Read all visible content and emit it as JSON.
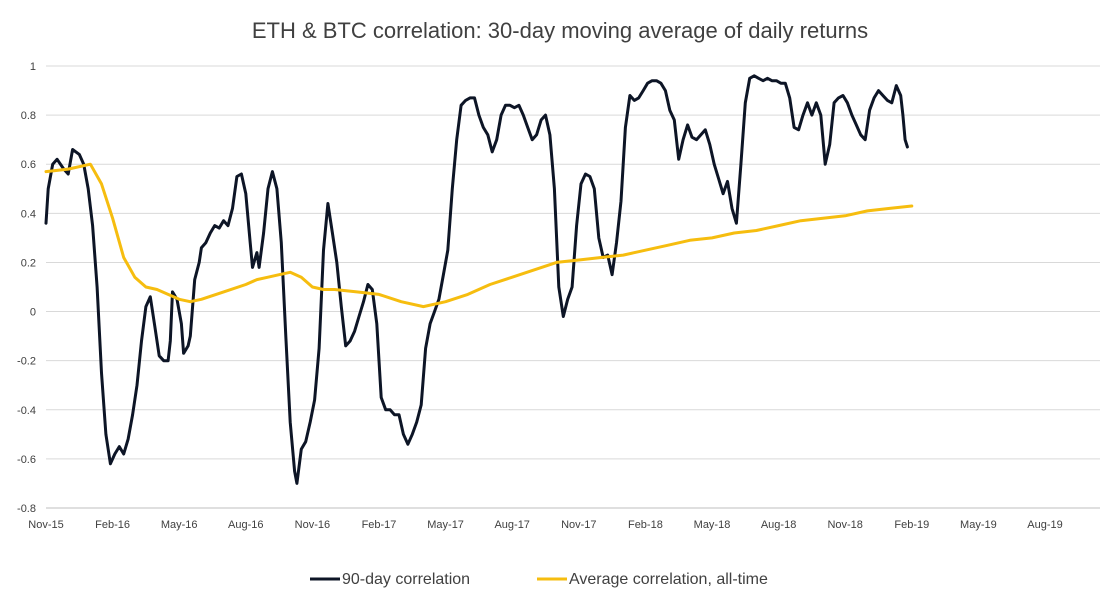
{
  "chart_data": {
    "type": "line",
    "title": "ETH & BTC correlation: 30-day moving average of daily returns",
    "xlabel": "",
    "ylabel": "",
    "ylim": [
      -0.8,
      1
    ],
    "y_ticks": [
      "1",
      "0.8",
      "0.6",
      "0.4",
      "0.2",
      "0",
      "-0.2",
      "-0.4",
      "-0.6",
      "-0.8"
    ],
    "x_ticks": [
      "Nov-15",
      "Feb-16",
      "May-16",
      "Aug-16",
      "Nov-16",
      "Feb-17",
      "May-17",
      "Aug-17",
      "Nov-17",
      "Feb-18",
      "May-18",
      "Aug-18",
      "Nov-18",
      "Feb-19",
      "May-19",
      "Aug-19"
    ],
    "x_range_months": [
      0,
      48
    ],
    "grid": true,
    "legend_position": "bottom",
    "series": [
      {
        "name": "90-day correlation",
        "color": "#0d1526",
        "points": [
          [
            0.0,
            0.36
          ],
          [
            0.1,
            0.5
          ],
          [
            0.3,
            0.6
          ],
          [
            0.5,
            0.62
          ],
          [
            0.8,
            0.58
          ],
          [
            1.0,
            0.56
          ],
          [
            1.2,
            0.66
          ],
          [
            1.5,
            0.64
          ],
          [
            1.7,
            0.6
          ],
          [
            1.9,
            0.5
          ],
          [
            2.1,
            0.35
          ],
          [
            2.3,
            0.1
          ],
          [
            2.5,
            -0.25
          ],
          [
            2.7,
            -0.5
          ],
          [
            2.9,
            -0.62
          ],
          [
            3.1,
            -0.58
          ],
          [
            3.3,
            -0.55
          ],
          [
            3.5,
            -0.58
          ],
          [
            3.7,
            -0.52
          ],
          [
            3.9,
            -0.42
          ],
          [
            4.1,
            -0.3
          ],
          [
            4.3,
            -0.12
          ],
          [
            4.5,
            0.02
          ],
          [
            4.7,
            0.06
          ],
          [
            4.9,
            -0.06
          ],
          [
            5.1,
            -0.18
          ],
          [
            5.3,
            -0.2
          ],
          [
            5.5,
            -0.2
          ],
          [
            5.6,
            -0.12
          ],
          [
            5.7,
            0.08
          ],
          [
            5.9,
            0.05
          ],
          [
            6.1,
            -0.05
          ],
          [
            6.2,
            -0.17
          ],
          [
            6.4,
            -0.14
          ],
          [
            6.5,
            -0.1
          ],
          [
            6.7,
            0.13
          ],
          [
            6.9,
            0.2
          ],
          [
            7.0,
            0.26
          ],
          [
            7.2,
            0.28
          ],
          [
            7.4,
            0.32
          ],
          [
            7.6,
            0.35
          ],
          [
            7.8,
            0.34
          ],
          [
            8.0,
            0.37
          ],
          [
            8.2,
            0.35
          ],
          [
            8.4,
            0.42
          ],
          [
            8.6,
            0.55
          ],
          [
            8.8,
            0.56
          ],
          [
            9.0,
            0.48
          ],
          [
            9.2,
            0.28
          ],
          [
            9.3,
            0.18
          ],
          [
            9.5,
            0.24
          ],
          [
            9.6,
            0.18
          ],
          [
            9.8,
            0.32
          ],
          [
            10.0,
            0.5
          ],
          [
            10.2,
            0.57
          ],
          [
            10.4,
            0.5
          ],
          [
            10.6,
            0.28
          ],
          [
            10.8,
            -0.1
          ],
          [
            11.0,
            -0.45
          ],
          [
            11.2,
            -0.65
          ],
          [
            11.3,
            -0.7
          ],
          [
            11.5,
            -0.56
          ],
          [
            11.7,
            -0.53
          ],
          [
            11.9,
            -0.45
          ],
          [
            12.1,
            -0.36
          ],
          [
            12.3,
            -0.15
          ],
          [
            12.5,
            0.25
          ],
          [
            12.7,
            0.44
          ],
          [
            12.9,
            0.32
          ],
          [
            13.1,
            0.2
          ],
          [
            13.3,
            0.02
          ],
          [
            13.5,
            -0.14
          ],
          [
            13.7,
            -0.12
          ],
          [
            13.9,
            -0.08
          ],
          [
            14.1,
            -0.02
          ],
          [
            14.3,
            0.04
          ],
          [
            14.5,
            0.11
          ],
          [
            14.7,
            0.09
          ],
          [
            14.9,
            -0.05
          ],
          [
            15.1,
            -0.35
          ],
          [
            15.3,
            -0.4
          ],
          [
            15.5,
            -0.4
          ],
          [
            15.7,
            -0.42
          ],
          [
            15.9,
            -0.42
          ],
          [
            16.1,
            -0.5
          ],
          [
            16.3,
            -0.54
          ],
          [
            16.5,
            -0.5
          ],
          [
            16.7,
            -0.45
          ],
          [
            16.9,
            -0.38
          ],
          [
            17.1,
            -0.15
          ],
          [
            17.3,
            -0.05
          ],
          [
            17.5,
            0.0
          ],
          [
            17.7,
            0.05
          ],
          [
            17.9,
            0.15
          ],
          [
            18.1,
            0.25
          ],
          [
            18.3,
            0.5
          ],
          [
            18.5,
            0.7
          ],
          [
            18.7,
            0.84
          ],
          [
            18.9,
            0.86
          ],
          [
            19.1,
            0.87
          ],
          [
            19.3,
            0.87
          ],
          [
            19.5,
            0.8
          ],
          [
            19.7,
            0.75
          ],
          [
            19.9,
            0.72
          ],
          [
            20.1,
            0.65
          ],
          [
            20.3,
            0.7
          ],
          [
            20.5,
            0.8
          ],
          [
            20.7,
            0.84
          ],
          [
            20.9,
            0.84
          ],
          [
            21.1,
            0.83
          ],
          [
            21.3,
            0.84
          ],
          [
            21.5,
            0.8
          ],
          [
            21.7,
            0.75
          ],
          [
            21.9,
            0.7
          ],
          [
            22.1,
            0.72
          ],
          [
            22.3,
            0.78
          ],
          [
            22.5,
            0.8
          ],
          [
            22.7,
            0.72
          ],
          [
            22.9,
            0.5
          ],
          [
            23.1,
            0.1
          ],
          [
            23.3,
            -0.02
          ],
          [
            23.5,
            0.05
          ],
          [
            23.7,
            0.1
          ],
          [
            23.9,
            0.35
          ],
          [
            24.1,
            0.52
          ],
          [
            24.3,
            0.56
          ],
          [
            24.5,
            0.55
          ],
          [
            24.7,
            0.5
          ],
          [
            24.9,
            0.3
          ],
          [
            25.1,
            0.22
          ],
          [
            25.3,
            0.23
          ],
          [
            25.5,
            0.15
          ],
          [
            25.7,
            0.28
          ],
          [
            25.9,
            0.45
          ],
          [
            26.1,
            0.75
          ],
          [
            26.3,
            0.88
          ],
          [
            26.5,
            0.86
          ],
          [
            26.7,
            0.87
          ],
          [
            26.9,
            0.9
          ],
          [
            27.1,
            0.93
          ],
          [
            27.3,
            0.94
          ],
          [
            27.5,
            0.94
          ],
          [
            27.7,
            0.93
          ],
          [
            27.9,
            0.9
          ],
          [
            28.1,
            0.82
          ],
          [
            28.3,
            0.78
          ],
          [
            28.5,
            0.62
          ],
          [
            28.7,
            0.7
          ],
          [
            28.9,
            0.76
          ],
          [
            29.1,
            0.71
          ],
          [
            29.3,
            0.7
          ],
          [
            29.5,
            0.72
          ],
          [
            29.7,
            0.74
          ],
          [
            29.9,
            0.68
          ],
          [
            30.1,
            0.6
          ],
          [
            30.3,
            0.54
          ],
          [
            30.5,
            0.48
          ],
          [
            30.7,
            0.53
          ],
          [
            30.9,
            0.42
          ],
          [
            31.1,
            0.36
          ],
          [
            31.3,
            0.6
          ],
          [
            31.5,
            0.85
          ],
          [
            31.7,
            0.95
          ],
          [
            31.9,
            0.96
          ],
          [
            32.1,
            0.95
          ],
          [
            32.3,
            0.94
          ],
          [
            32.5,
            0.95
          ],
          [
            32.7,
            0.94
          ],
          [
            32.9,
            0.94
          ],
          [
            33.1,
            0.93
          ],
          [
            33.3,
            0.93
          ],
          [
            33.5,
            0.87
          ],
          [
            33.7,
            0.75
          ],
          [
            33.9,
            0.74
          ],
          [
            34.1,
            0.8
          ],
          [
            34.3,
            0.85
          ],
          [
            34.5,
            0.8
          ],
          [
            34.7,
            0.85
          ],
          [
            34.9,
            0.8
          ],
          [
            35.1,
            0.6
          ],
          [
            35.3,
            0.68
          ],
          [
            35.5,
            0.85
          ],
          [
            35.7,
            0.87
          ],
          [
            35.9,
            0.88
          ],
          [
            36.1,
            0.85
          ],
          [
            36.3,
            0.8
          ],
          [
            36.5,
            0.76
          ],
          [
            36.7,
            0.72
          ],
          [
            36.9,
            0.7
          ],
          [
            37.1,
            0.82
          ],
          [
            37.3,
            0.87
          ],
          [
            37.5,
            0.9
          ],
          [
            37.7,
            0.88
          ],
          [
            37.9,
            0.86
          ],
          [
            38.1,
            0.85
          ],
          [
            38.3,
            0.92
          ],
          [
            38.5,
            0.88
          ],
          [
            38.6,
            0.8
          ],
          [
            38.7,
            0.7
          ],
          [
            38.8,
            0.67
          ]
        ]
      },
      {
        "name": "Average correlation, all-time",
        "color": "#f6bd0f",
        "points": [
          [
            0.0,
            0.57
          ],
          [
            1.0,
            0.58
          ],
          [
            2.0,
            0.6
          ],
          [
            2.5,
            0.52
          ],
          [
            3.0,
            0.38
          ],
          [
            3.5,
            0.22
          ],
          [
            4.0,
            0.14
          ],
          [
            4.5,
            0.1
          ],
          [
            5.0,
            0.09
          ],
          [
            5.5,
            0.07
          ],
          [
            6.0,
            0.05
          ],
          [
            6.5,
            0.04
          ],
          [
            7.0,
            0.05
          ],
          [
            8.0,
            0.08
          ],
          [
            9.0,
            0.11
          ],
          [
            9.5,
            0.13
          ],
          [
            10.0,
            0.14
          ],
          [
            10.5,
            0.15
          ],
          [
            11.0,
            0.16
          ],
          [
            11.5,
            0.14
          ],
          [
            12.0,
            0.1
          ],
          [
            12.5,
            0.09
          ],
          [
            13.0,
            0.09
          ],
          [
            14.0,
            0.08
          ],
          [
            15.0,
            0.07
          ],
          [
            16.0,
            0.04
          ],
          [
            17.0,
            0.02
          ],
          [
            18.0,
            0.04
          ],
          [
            19.0,
            0.07
          ],
          [
            20.0,
            0.11
          ],
          [
            21.0,
            0.14
          ],
          [
            22.0,
            0.17
          ],
          [
            23.0,
            0.2
          ],
          [
            24.0,
            0.21
          ],
          [
            25.0,
            0.22
          ],
          [
            26.0,
            0.23
          ],
          [
            27.0,
            0.25
          ],
          [
            28.0,
            0.27
          ],
          [
            29.0,
            0.29
          ],
          [
            30.0,
            0.3
          ],
          [
            31.0,
            0.32
          ],
          [
            32.0,
            0.33
          ],
          [
            33.0,
            0.35
          ],
          [
            34.0,
            0.37
          ],
          [
            35.0,
            0.38
          ],
          [
            36.0,
            0.39
          ],
          [
            37.0,
            0.41
          ],
          [
            38.0,
            0.42
          ],
          [
            39.0,
            0.43
          ]
        ]
      }
    ]
  }
}
